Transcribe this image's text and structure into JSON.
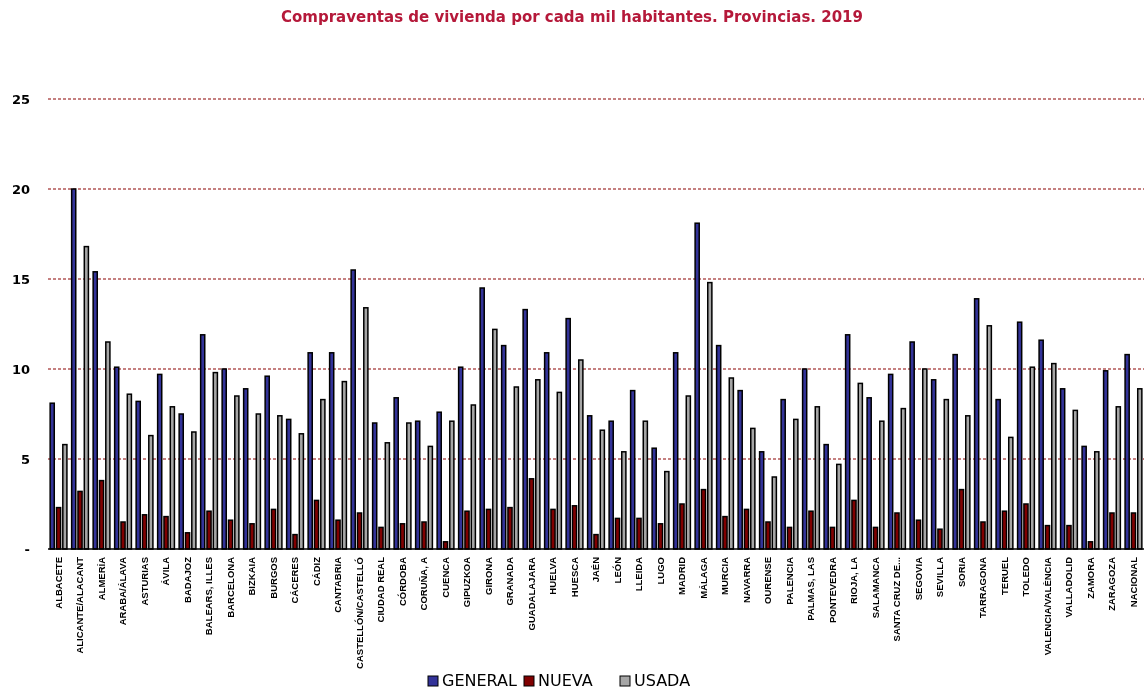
{
  "chart_data": {
    "type": "bar",
    "title": "Compraventas de vivienda por cada mil habitantes. Provincias. 2019",
    "categories": [
      "ALBACETE",
      "ALICANTE/ALACANT",
      "ALMERÍA",
      "ARABA/ÁLAVA",
      "ASTURIAS",
      "ÁVILA",
      "BADAJOZ",
      "BALEARS, ILLES",
      "BARCELONA",
      "BIZKAIA",
      "BURGOS",
      "CÁCERES",
      "CÁDIZ",
      "CANTABRIA",
      "CASTELLÓN/CASTELLÓ",
      "CIUDAD REAL",
      "CÓRDOBA",
      "CORUÑA, A",
      "CUENCA",
      "GIPUZKOA",
      "GIRONA",
      "GRANADA",
      "GUADALAJARA",
      "HUELVA",
      "HUESCA",
      "JAÉN",
      "LEÓN",
      "LLEIDA",
      "LUGO",
      "MADRID",
      "MÁLAGA",
      "MURCIA",
      "NAVARRA",
      "OURENSE",
      "PALENCIA",
      "PALMAS, LAS",
      "PONTEVEDRA",
      "RIOJA, LA",
      "SALAMANCA",
      "SANTA CRUZ DE...",
      "SEGOVIA",
      "SEVILLA",
      "SORIA",
      "TARRAGONA",
      "TERUEL",
      "TOLEDO",
      "VALENCIA/VALÈNCIA",
      "VALLADOLID",
      "ZAMORA",
      "ZARAGOZA",
      "NACIONAL"
    ],
    "series": [
      {
        "name": "GENERAL",
        "color": "#333399",
        "values": [
          8.1,
          20.0,
          15.4,
          10.1,
          8.2,
          9.7,
          7.5,
          11.9,
          10.0,
          8.9,
          9.6,
          7.2,
          10.9,
          10.9,
          15.5,
          7.0,
          8.4,
          7.1,
          7.6,
          10.1,
          14.5,
          11.3,
          13.3,
          10.9,
          12.8,
          7.4,
          7.1,
          8.8,
          5.6,
          10.9,
          18.1,
          11.3,
          8.8,
          5.4,
          8.3,
          10.0,
          5.8,
          11.9,
          8.4,
          9.7,
          11.5,
          9.4,
          10.8,
          13.9,
          8.3,
          12.6,
          11.6,
          8.9,
          5.7,
          9.9,
          10.8
        ]
      },
      {
        "name": "NUEVA",
        "color": "#800000",
        "values": [
          2.3,
          3.2,
          3.8,
          1.5,
          1.9,
          1.8,
          0.9,
          2.1,
          1.6,
          1.4,
          2.2,
          0.8,
          2.7,
          1.6,
          2.0,
          1.2,
          1.4,
          1.5,
          0.4,
          2.1,
          2.2,
          2.3,
          3.9,
          2.2,
          2.4,
          0.8,
          1.7,
          1.7,
          1.4,
          2.5,
          3.3,
          1.8,
          2.2,
          1.5,
          1.2,
          2.1,
          1.2,
          2.7,
          1.2,
          2.0,
          1.6,
          1.1,
          3.3,
          1.5,
          2.1,
          2.5,
          1.3,
          1.3,
          0.4,
          2.0,
          2.0
        ]
      },
      {
        "name": "USADA",
        "color": "#a6a6a6",
        "values": [
          5.8,
          16.8,
          11.5,
          8.6,
          6.3,
          7.9,
          6.5,
          9.8,
          8.5,
          7.5,
          7.4,
          6.4,
          8.3,
          9.3,
          13.4,
          5.9,
          7.0,
          5.7,
          7.1,
          8.0,
          12.2,
          9.0,
          9.4,
          8.7,
          10.5,
          6.6,
          5.4,
          7.1,
          4.3,
          8.5,
          14.8,
          9.5,
          6.7,
          4.0,
          7.2,
          7.9,
          4.7,
          9.2,
          7.1,
          7.8,
          10.0,
          8.3,
          7.4,
          12.4,
          6.2,
          10.1,
          10.3,
          7.7,
          5.4,
          7.9,
          8.9
        ]
      }
    ],
    "ylim": [
      0,
      25
    ],
    "yticks": [
      {
        "value": 0,
        "label": "-"
      },
      5,
      10,
      15,
      20,
      25
    ],
    "grid": "y",
    "legend": "bottom"
  }
}
